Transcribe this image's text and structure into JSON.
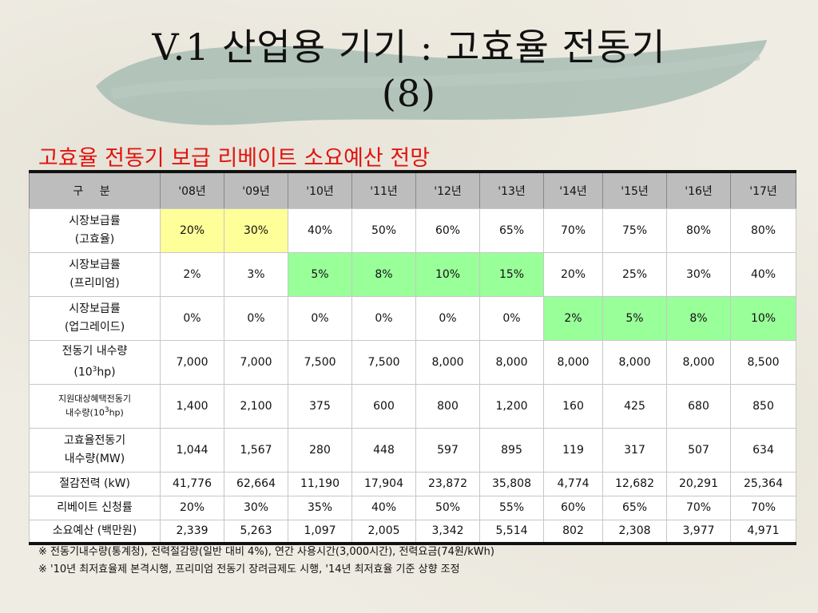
{
  "slide": {
    "title_line1": "V.1 산업용 기기 : 고효율 전동기",
    "title_line2": "(8)",
    "subtitle": "고효율 전동기 보급 리베이트 소요예산 전망"
  },
  "colors": {
    "title": "#111111",
    "subtitle": "#e0140f",
    "header_bg": "#bdbdbd",
    "highlight_yellow": "#ffff99",
    "highlight_green": "#99ff99"
  },
  "table": {
    "header_label": "구 분",
    "years": [
      "'08년",
      "'09년",
      "'10년",
      "'11년",
      "'12년",
      "'13년",
      "'14년",
      "'15년",
      "'16년",
      "'17년"
    ],
    "rows": [
      {
        "label_line1": "시장보급률",
        "label_line2": "(고효율)",
        "values": [
          "20%",
          "30%",
          "40%",
          "50%",
          "60%",
          "65%",
          "70%",
          "75%",
          "80%",
          "80%"
        ],
        "highlight": [
          "yellow",
          "yellow",
          "",
          "",
          "",
          "",
          "",
          "",
          "",
          ""
        ]
      },
      {
        "label_line1": "시장보급률",
        "label_line2": "(프리미엄)",
        "values": [
          "2%",
          "3%",
          "5%",
          "8%",
          "10%",
          "15%",
          "20%",
          "25%",
          "30%",
          "40%"
        ],
        "highlight": [
          "",
          "",
          "green",
          "green",
          "green",
          "green",
          "",
          "",
          "",
          ""
        ]
      },
      {
        "label_line1": "시장보급률",
        "label_line2": "(업그레이드)",
        "values": [
          "0%",
          "0%",
          "0%",
          "0%",
          "0%",
          "0%",
          "2%",
          "5%",
          "8%",
          "10%"
        ],
        "highlight": [
          "",
          "",
          "",
          "",
          "",
          "",
          "green",
          "green",
          "green",
          "green"
        ]
      },
      {
        "label_line1": "전동기 내수량",
        "label_line2_pre": "(10",
        "label_line2_sup": "3",
        "label_line2_post": "hp)",
        "values": [
          "7,000",
          "7,000",
          "7,500",
          "7,500",
          "8,000",
          "8,000",
          "8,000",
          "8,000",
          "8,000",
          "8,500"
        ]
      },
      {
        "label_line1": "지원대상혜택전동기",
        "label_line2_pre": "내수량(10",
        "label_line2_sup": "3",
        "label_line2_post": "hp)",
        "values": [
          "1,400",
          "2,100",
          "375",
          "600",
          "800",
          "1,200",
          "160",
          "425",
          "680",
          "850"
        ]
      },
      {
        "label_line1": "고효율전동기",
        "label_line2": "내수량(MW)",
        "values": [
          "1,044",
          "1,567",
          "280",
          "448",
          "597",
          "895",
          "119",
          "317",
          "507",
          "634"
        ]
      },
      {
        "label_line1": "절감전력 (kW)",
        "values": [
          "41,776",
          "62,664",
          "11,190",
          "17,904",
          "23,872",
          "35,808",
          "4,774",
          "12,682",
          "20,291",
          "25,364"
        ]
      },
      {
        "label_line1": "리베이트 신청률",
        "values": [
          "20%",
          "30%",
          "35%",
          "40%",
          "50%",
          "55%",
          "60%",
          "65%",
          "70%",
          "70%"
        ]
      },
      {
        "label_line1": "소요예산 (백만원)",
        "values": [
          "2,339",
          "5,263",
          "1,097",
          "2,005",
          "3,342",
          "5,514",
          "802",
          "2,308",
          "3,977",
          "4,971"
        ]
      }
    ]
  },
  "notes": [
    "※ 전동기내수량(통계청), 전력절감량(일반 대비 4%), 연간 사용시간(3,000시간), 전력요금(74원/kWh)",
    "※ '10년 최저효율제 본격시행, 프리미엄 전동기 장려금제도 시행, '14년 최저효율 기준 상향 조정"
  ]
}
